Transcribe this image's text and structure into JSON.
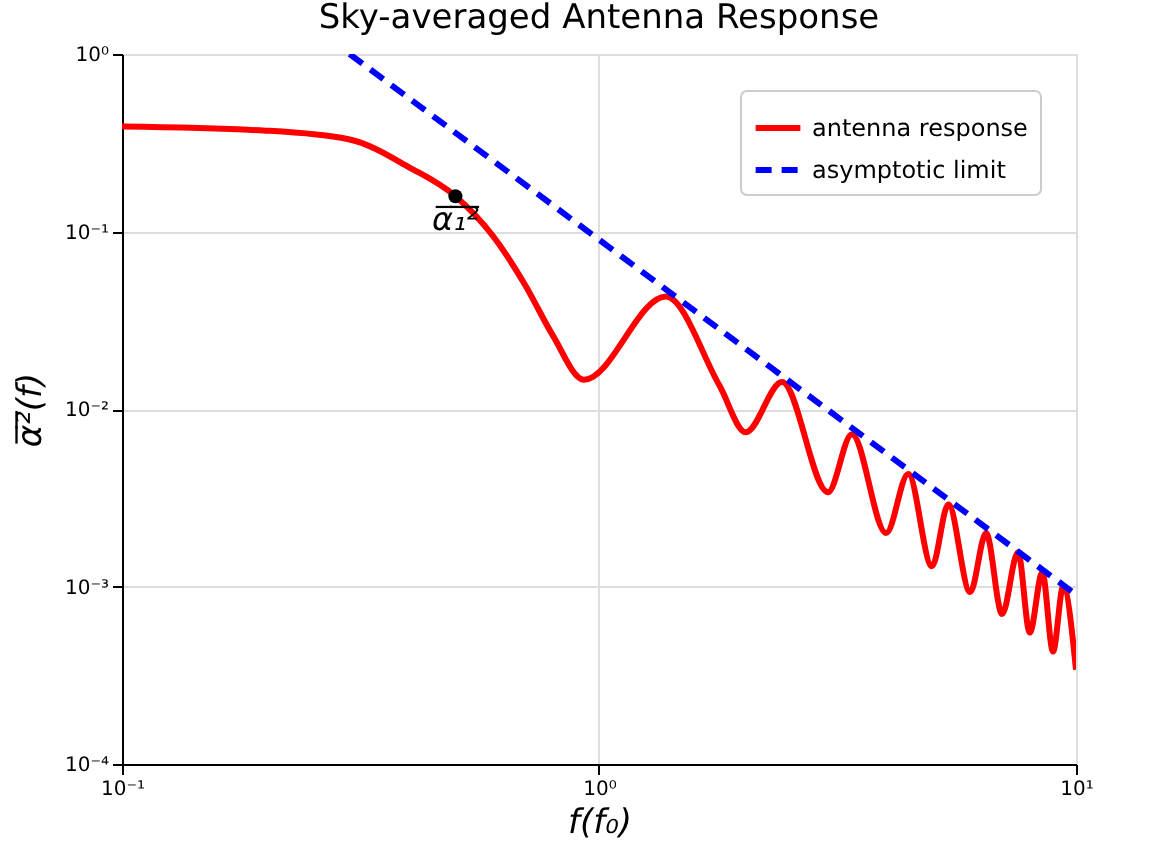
{
  "chart_data": {
    "type": "line",
    "title": "Sky-averaged Antenna Response",
    "xlabel": "f(f₀)",
    "ylabel": "α̅²̅(f)",
    "log": "xy",
    "grid": true,
    "legend": "top right",
    "marker": "none",
    "xlim": [
      0.1,
      10
    ],
    "ylim": [
      0.0001,
      1
    ],
    "xticks": [
      {
        "value": 0.1,
        "label": "10⁻¹"
      },
      {
        "value": 1,
        "label": "10⁰"
      },
      {
        "value": 10,
        "label": "10¹"
      }
    ],
    "yticks": [
      {
        "value": 0.0001,
        "label": "10⁻⁴"
      },
      {
        "value": 0.001,
        "label": "10⁻³"
      },
      {
        "value": 0.01,
        "label": "10⁻²"
      },
      {
        "value": 0.1,
        "label": "10⁻¹"
      },
      {
        "value": 1,
        "label": "10⁰"
      }
    ],
    "annotations": [
      {
        "text": "α̅₁̅²̅",
        "x": 0.5,
        "y": 0.158
      }
    ],
    "series": [
      {
        "name": "antenna response",
        "color": "#ff0000",
        "line_style": "solid",
        "x": [
          0.1,
          0.2,
          0.3,
          0.4,
          0.5,
          0.6,
          0.7,
          0.8,
          0.93,
          1.38,
          1.79,
          2.03,
          2.42,
          3.02,
          3.39,
          4.0,
          4.45,
          4.99,
          5.4,
          6.0,
          6.48,
          7.0,
          7.56,
          8.0,
          8.5,
          8.95,
          9.4,
          10
        ],
        "values": [
          0.39,
          0.37,
          0.33,
          0.23,
          0.158,
          0.094,
          0.05,
          0.026,
          0.0146,
          0.043,
          0.0135,
          0.0074,
          0.0142,
          0.0034,
          0.0072,
          0.002,
          0.0043,
          0.0013,
          0.0029,
          0.00093,
          0.002,
          0.0007,
          0.00156,
          0.00055,
          0.0012,
          0.00043,
          0.001,
          0.00034
        ]
      },
      {
        "name": "asymptotic limit",
        "color": "#0000ff",
        "line_style": "dashed",
        "x": [
          0.3,
          10
        ],
        "values": [
          1,
          0.0009
        ]
      }
    ]
  }
}
